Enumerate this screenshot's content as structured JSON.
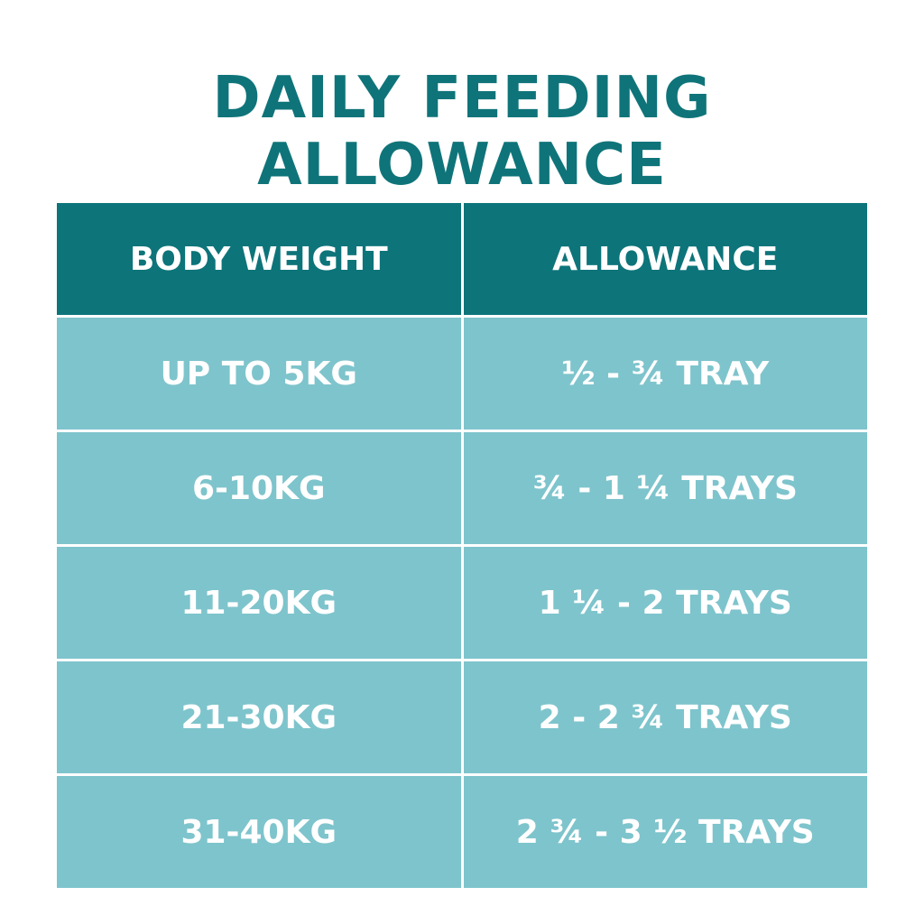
{
  "header": {
    "title": "DAILY FEEDING ALLOWANCE"
  },
  "table": {
    "columns": [
      "BODY WEIGHT",
      "ALLOWANCE"
    ],
    "rows": [
      [
        "UP TO 5KG",
        "½ - ¾ TRAY"
      ],
      [
        "6-10KG",
        "¾ - 1 ¼ TRAYS"
      ],
      [
        "11-20KG",
        "1 ¼ - 2 TRAYS"
      ],
      [
        "21-30KG",
        "2 - 2 ¾ TRAYS"
      ],
      [
        "31-40KG",
        "2 ¾ - 3 ½ TRAYS"
      ]
    ]
  }
}
